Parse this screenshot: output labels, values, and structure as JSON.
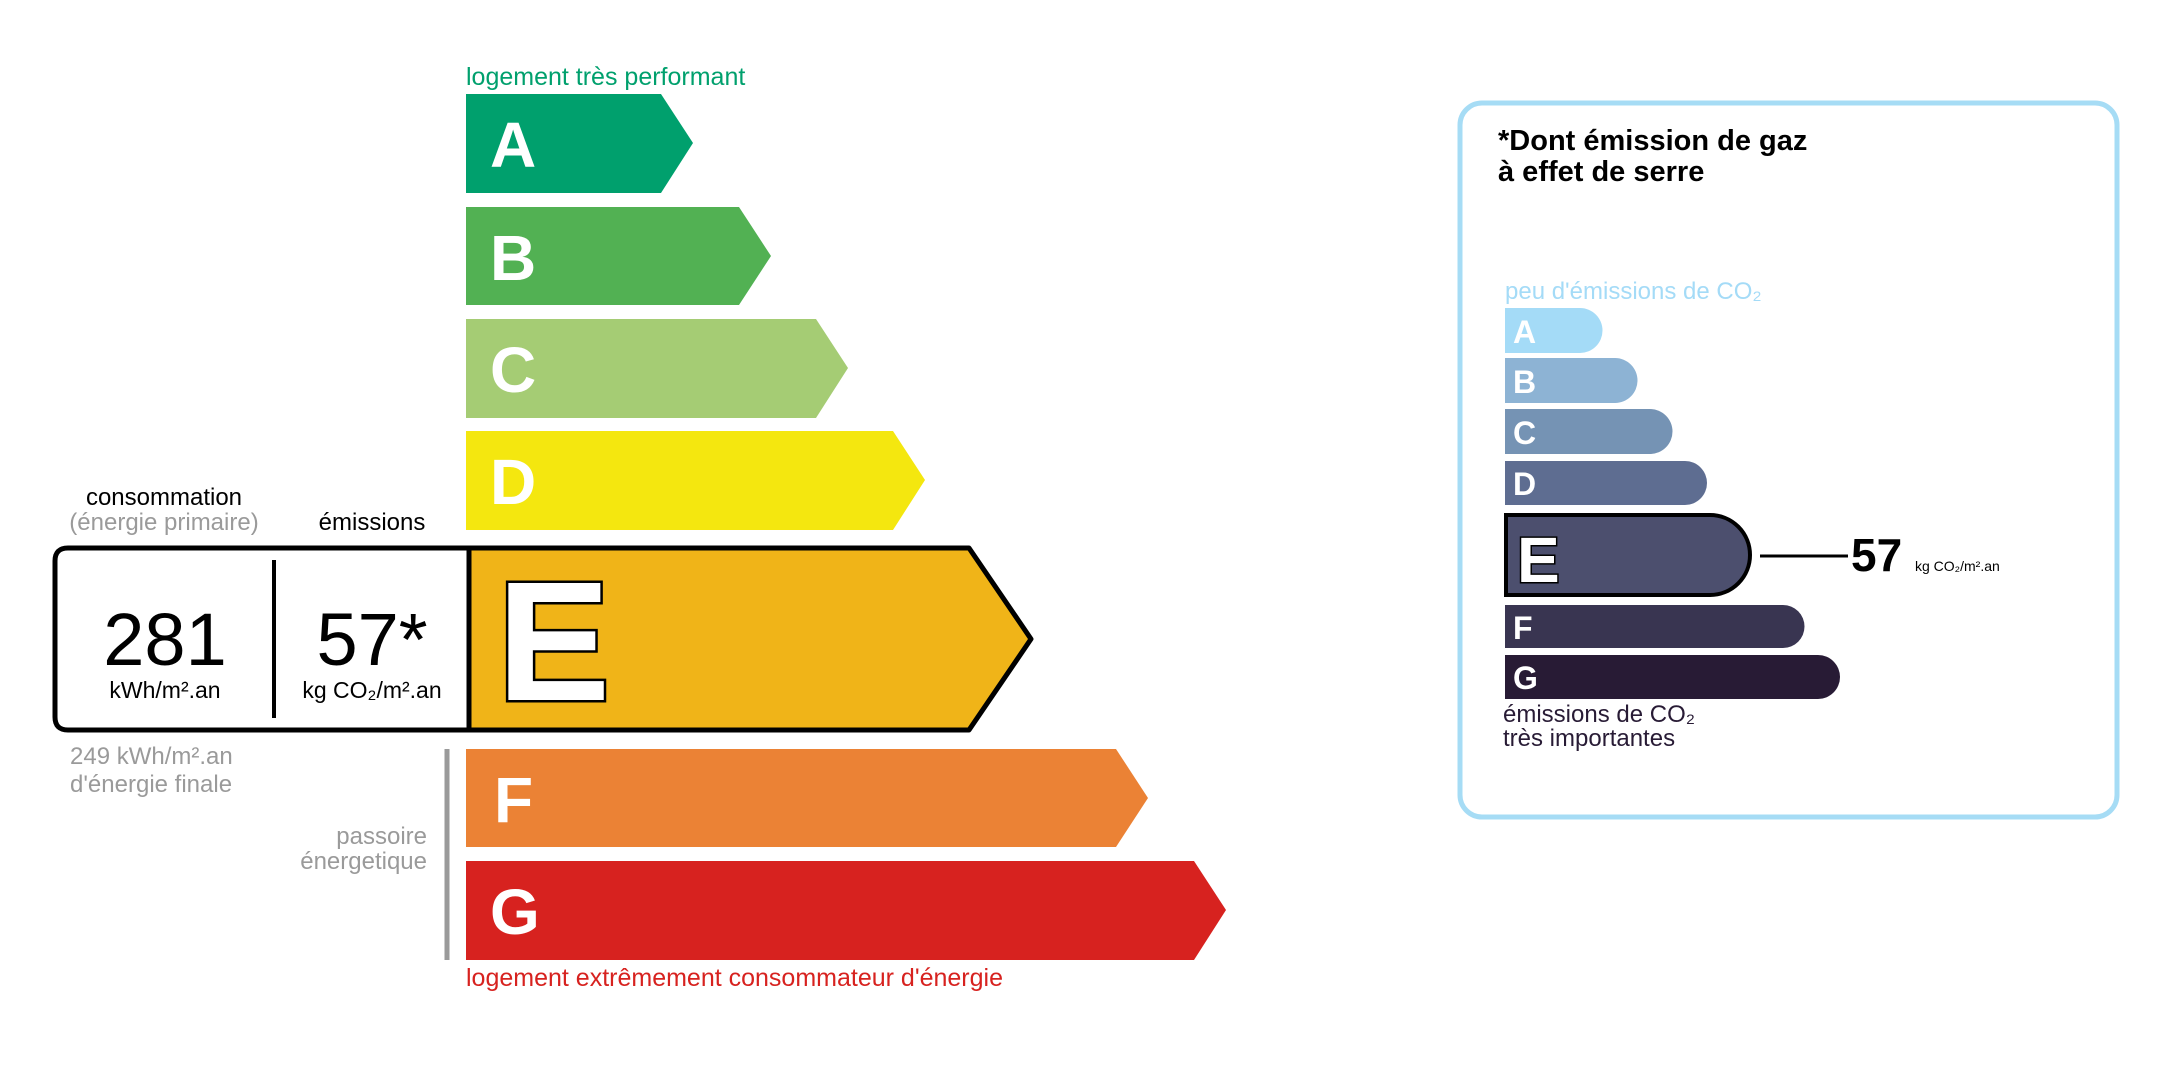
{
  "energy": {
    "top_label": "logement très performant",
    "bottom_label": "logement extrêmement consommateur d'énergie",
    "classes": [
      {
        "letter": "A",
        "color": "#00a06d"
      },
      {
        "letter": "B",
        "color": "#52b153"
      },
      {
        "letter": "C",
        "color": "#a5cc74"
      },
      {
        "letter": "D",
        "color": "#f4e70f"
      },
      {
        "letter": "E",
        "color": "#f0b418"
      },
      {
        "letter": "F",
        "color": "#eb8235"
      },
      {
        "letter": "G",
        "color": "#d7221f"
      }
    ],
    "current_class": "E",
    "consumption_label": "consommation",
    "consumption_sublabel": "(énergie primaire)",
    "emissions_label": "émissions",
    "consumption_value": "281",
    "consumption_unit": "kWh/m².an",
    "emissions_value": "57*",
    "emissions_unit": "kg CO₂/m².an",
    "final_energy_line1": "249 kWh/m².an",
    "final_energy_line2": "d'énergie finale",
    "passoire_line1": "passoire",
    "passoire_line2": "énergetique"
  },
  "ghg": {
    "title_line1": "*Dont émission de gaz",
    "title_line2": "à effet de serre",
    "top_label": "peu d'émissions de CO₂",
    "bottom_line1": "émissions de CO₂",
    "bottom_line2": "très importantes",
    "classes": [
      {
        "letter": "A",
        "color": "#a4dbf7"
      },
      {
        "letter": "B",
        "color": "#8db3d4"
      },
      {
        "letter": "C",
        "color": "#7593b4"
      },
      {
        "letter": "D",
        "color": "#5e6d91"
      },
      {
        "letter": "E",
        "color": "#4c4f6e"
      },
      {
        "letter": "F",
        "color": "#393551"
      },
      {
        "letter": "G",
        "color": "#281b35"
      }
    ],
    "current_class": "E",
    "value": "57",
    "unit": "kg CO₂/m².an",
    "border_color": "#a6dcf5"
  }
}
